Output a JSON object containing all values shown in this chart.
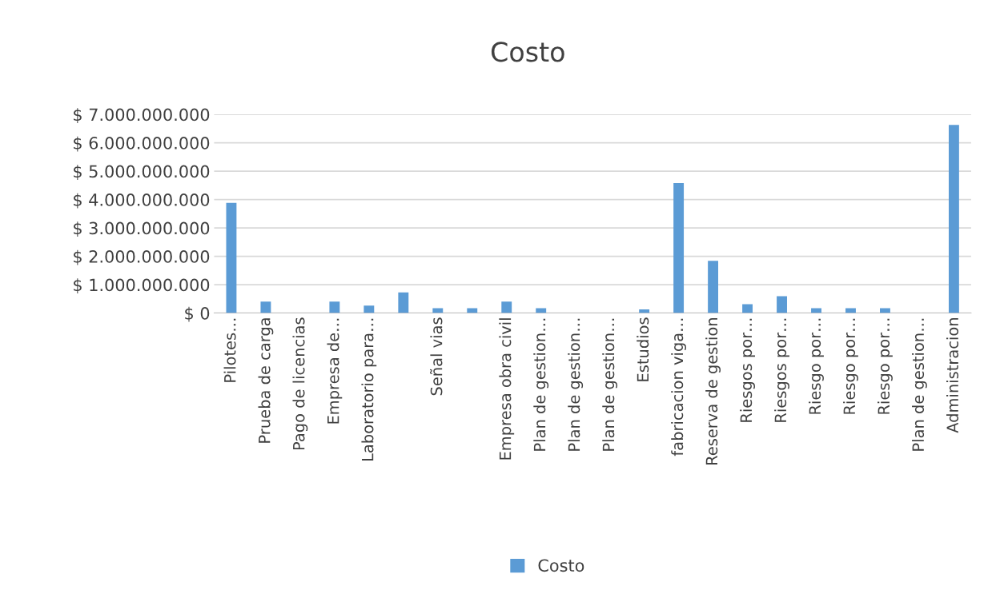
{
  "chart_data": {
    "type": "bar",
    "title": "Costo",
    "categories": [
      "Pilotes…",
      "Prueba de carga",
      "Pago de licencias",
      "Empresa de…",
      "Laboratorio para…",
      null,
      "Señal vias",
      null,
      "Empresa obra civil",
      "Plan de gestion…",
      "Plan de gestion…",
      "Plan de gestion…",
      "Estudios",
      "fabricacion viga…",
      "Reserva de gestion",
      "Riesgos por…",
      "Riesgos por…",
      "Riesgo por…",
      "Riesgo por…",
      "Riesgo por…",
      "Plan de gestion…",
      "Administracion"
    ],
    "series": [
      {
        "name": "Costo",
        "color": "#5b9bd5",
        "values": [
          3880000000,
          400000000,
          0,
          400000000,
          260000000,
          730000000,
          170000000,
          170000000,
          400000000,
          170000000,
          0,
          0,
          130000000,
          4580000000,
          1840000000,
          310000000,
          590000000,
          170000000,
          170000000,
          170000000,
          0,
          6630000000
        ]
      }
    ],
    "ylim": [
      0,
      7000000000
    ],
    "yticks": [
      {
        "value": 0,
        "label": "$ 0"
      },
      {
        "value": 1000000000,
        "label": "$ 1.000.000.000"
      },
      {
        "value": 2000000000,
        "label": "$ 2.000.000.000"
      },
      {
        "value": 3000000000,
        "label": "$ 3.000.000.000"
      },
      {
        "value": 4000000000,
        "label": "$ 4.000.000.000"
      },
      {
        "value": 5000000000,
        "label": "$ 5.000.000.000"
      },
      {
        "value": 6000000000,
        "label": "$ 6.000.000.000"
      },
      {
        "value": 7000000000,
        "label": "$ 7.000.000.000"
      }
    ],
    "grid": "y",
    "legend": "bottom"
  }
}
